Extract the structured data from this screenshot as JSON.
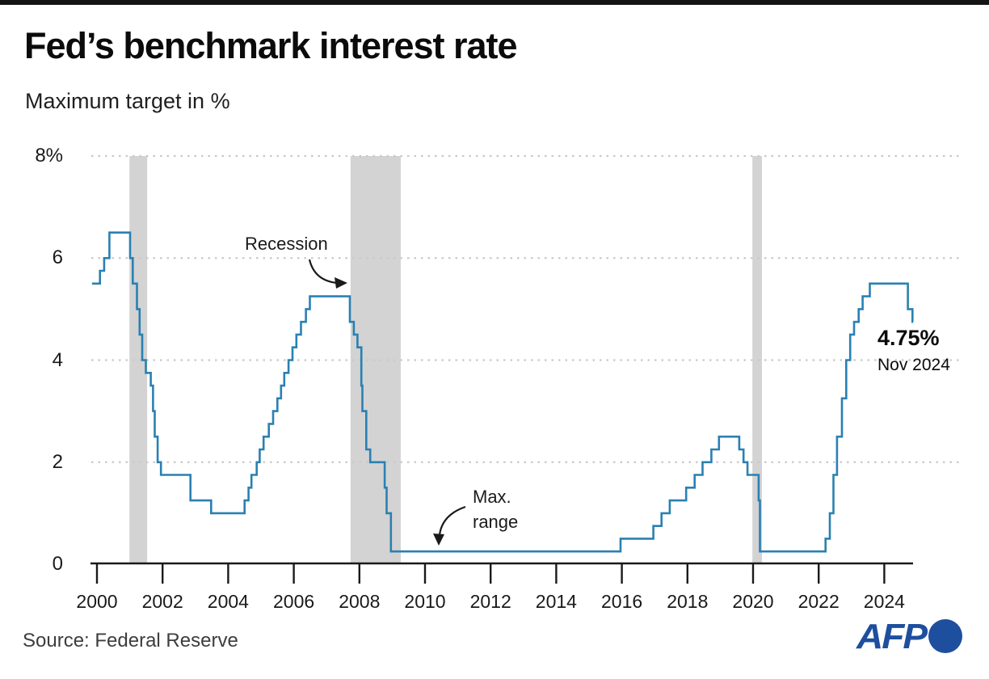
{
  "header": {
    "title": "Fed’s benchmark interest rate",
    "subtitle": "Maximum target in %"
  },
  "source": {
    "label": "Source: Federal Reserve"
  },
  "branding": {
    "name": "AFP"
  },
  "chart_data": {
    "type": "line",
    "line_style": "step",
    "title": "Fed’s benchmark interest rate",
    "subtitle": "Maximum target in %",
    "xlabel": "",
    "ylabel": "Maximum target in %",
    "units": "%",
    "ylim": [
      0,
      8
    ],
    "xlim": [
      1999.85,
      2024.9
    ],
    "grid": "dotted horizontal",
    "legend": "none",
    "line_color": "#2a80b2",
    "recession_band_color": "#d3d3d3",
    "yticks": [
      {
        "label": "8%",
        "value": 8
      },
      {
        "label": "6",
        "value": 6
      },
      {
        "label": "4",
        "value": 4
      },
      {
        "label": "2",
        "value": 2
      },
      {
        "label": "0",
        "value": 0
      }
    ],
    "xticks": [
      2000,
      2002,
      2004,
      2006,
      2008,
      2010,
      2012,
      2014,
      2016,
      2018,
      2020,
      2022,
      2024
    ],
    "recession_bands": [
      {
        "start": 2000.99,
        "end": 2001.53
      },
      {
        "start": 2007.73,
        "end": 2009.26
      },
      {
        "start": 2019.98,
        "end": 2020.27
      }
    ],
    "series": [
      {
        "name": "Fed benchmark interest rate (maximum target, %)",
        "points": [
          [
            1999.85,
            5.5
          ],
          [
            2000.09,
            5.75
          ],
          [
            2000.22,
            6.0
          ],
          [
            2000.38,
            6.5
          ],
          [
            2001.01,
            6.0
          ],
          [
            2001.09,
            5.5
          ],
          [
            2001.22,
            5.0
          ],
          [
            2001.3,
            4.5
          ],
          [
            2001.38,
            4.0
          ],
          [
            2001.49,
            3.75
          ],
          [
            2001.64,
            3.5
          ],
          [
            2001.71,
            3.0
          ],
          [
            2001.76,
            2.5
          ],
          [
            2001.85,
            2.0
          ],
          [
            2001.95,
            1.75
          ],
          [
            2002.85,
            1.25
          ],
          [
            2003.48,
            1.0
          ],
          [
            2004.5,
            1.25
          ],
          [
            2004.62,
            1.5
          ],
          [
            2004.71,
            1.75
          ],
          [
            2004.87,
            2.0
          ],
          [
            2004.96,
            2.25
          ],
          [
            2005.08,
            2.5
          ],
          [
            2005.24,
            2.75
          ],
          [
            2005.37,
            3.0
          ],
          [
            2005.5,
            3.25
          ],
          [
            2005.61,
            3.5
          ],
          [
            2005.71,
            3.75
          ],
          [
            2005.84,
            4.0
          ],
          [
            2005.96,
            4.25
          ],
          [
            2006.08,
            4.5
          ],
          [
            2006.22,
            4.75
          ],
          [
            2006.37,
            5.0
          ],
          [
            2006.49,
            5.25
          ],
          [
            2007.71,
            4.75
          ],
          [
            2007.83,
            4.5
          ],
          [
            2007.94,
            4.25
          ],
          [
            2008.06,
            3.5
          ],
          [
            2008.09,
            3.0
          ],
          [
            2008.21,
            2.25
          ],
          [
            2008.33,
            2.0
          ],
          [
            2008.77,
            1.5
          ],
          [
            2008.83,
            1.0
          ],
          [
            2008.96,
            0.25
          ],
          [
            2015.96,
            0.5
          ],
          [
            2016.96,
            0.75
          ],
          [
            2017.21,
            1.0
          ],
          [
            2017.46,
            1.25
          ],
          [
            2017.96,
            1.5
          ],
          [
            2018.22,
            1.75
          ],
          [
            2018.46,
            2.0
          ],
          [
            2018.73,
            2.25
          ],
          [
            2018.96,
            2.5
          ],
          [
            2019.58,
            2.25
          ],
          [
            2019.71,
            2.0
          ],
          [
            2019.83,
            1.75
          ],
          [
            2020.17,
            1.25
          ],
          [
            2020.21,
            0.25
          ],
          [
            2022.21,
            0.5
          ],
          [
            2022.34,
            1.0
          ],
          [
            2022.45,
            1.75
          ],
          [
            2022.56,
            2.5
          ],
          [
            2022.71,
            3.25
          ],
          [
            2022.84,
            4.0
          ],
          [
            2022.96,
            4.5
          ],
          [
            2023.08,
            4.75
          ],
          [
            2023.22,
            5.0
          ],
          [
            2023.34,
            5.25
          ],
          [
            2023.56,
            5.5
          ],
          [
            2024.72,
            5.0
          ],
          [
            2024.86,
            4.75
          ]
        ]
      }
    ],
    "annotations": {
      "recession": {
        "label": "Recession"
      },
      "max_range": {
        "line1": "Max.",
        "line2": "range"
      },
      "latest": {
        "value": "4.75%",
        "date": "Nov 2024"
      }
    }
  }
}
